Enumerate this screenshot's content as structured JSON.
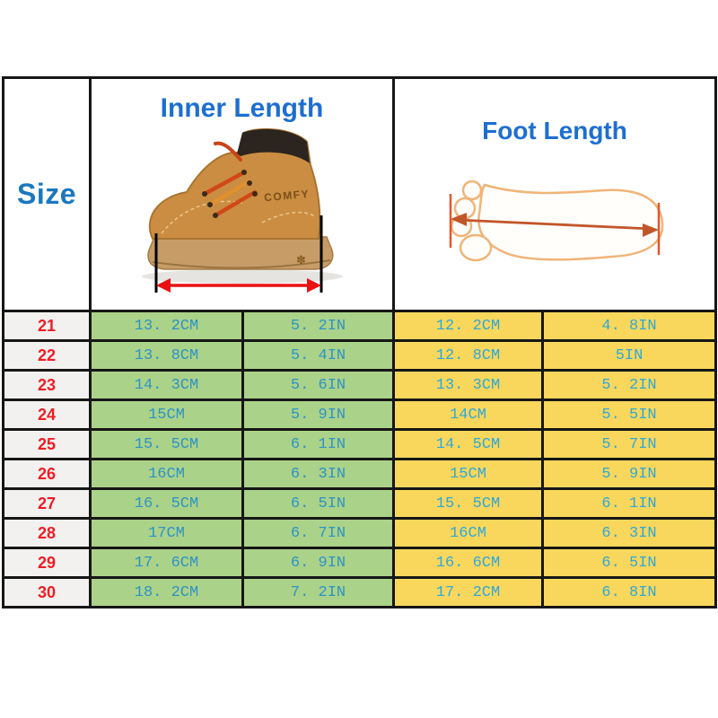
{
  "colors": {
    "table_border": "#161616",
    "header_blue": "#1d6fd0",
    "size_label_blue": "#1a78be",
    "size_number_red": "#ee1c25",
    "inner_cell_green": "#abd289",
    "foot_cell_yellow": "#f8d75c",
    "inner_value_text": "#2e93c4",
    "foot_value_text": "#2fa8d8",
    "measure_arrow_red": "#e91212",
    "foot_arrow_orange": "#c2562b",
    "foot_outline_orange": "#f0b478",
    "boot_tan": "#cb8d41"
  },
  "header": {
    "size_label": "Size",
    "inner_length_label": "Inner Length",
    "foot_length_label": "Foot Length",
    "boot_brand_text": "COMFY"
  },
  "table": {
    "rows": [
      {
        "size": "21",
        "inner_cm": "13. 2CM",
        "inner_in": "5. 2IN",
        "foot_cm": "12. 2CM",
        "foot_in": "4. 8IN"
      },
      {
        "size": "22",
        "inner_cm": "13. 8CM",
        "inner_in": "5. 4IN",
        "foot_cm": "12. 8CM",
        "foot_in": "5IN"
      },
      {
        "size": "23",
        "inner_cm": "14. 3CM",
        "inner_in": "5. 6IN",
        "foot_cm": "13. 3CM",
        "foot_in": "5. 2IN"
      },
      {
        "size": "24",
        "inner_cm": "15CM",
        "inner_in": "5. 9IN",
        "foot_cm": "14CM",
        "foot_in": "5. 5IN"
      },
      {
        "size": "25",
        "inner_cm": "15. 5CM",
        "inner_in": "6. 1IN",
        "foot_cm": "14. 5CM",
        "foot_in": "5. 7IN"
      },
      {
        "size": "26",
        "inner_cm": "16CM",
        "inner_in": "6. 3IN",
        "foot_cm": "15CM",
        "foot_in": "5. 9IN"
      },
      {
        "size": "27",
        "inner_cm": "16. 5CM",
        "inner_in": "6. 5IN",
        "foot_cm": "15. 5CM",
        "foot_in": "6. 1IN"
      },
      {
        "size": "28",
        "inner_cm": "17CM",
        "inner_in": "6. 7IN",
        "foot_cm": "16CM",
        "foot_in": "6. 3IN"
      },
      {
        "size": "29",
        "inner_cm": "17. 6CM",
        "inner_in": "6. 9IN",
        "foot_cm": "16. 6CM",
        "foot_in": "6. 5IN"
      },
      {
        "size": "30",
        "inner_cm": "18. 2CM",
        "inner_in": "7. 2IN",
        "foot_cm": "17. 2CM",
        "foot_in": "6. 8IN"
      }
    ]
  },
  "chart_data": {
    "type": "table",
    "columns": [
      "Size",
      "Inner Length CM",
      "Inner Length IN",
      "Foot Length CM",
      "Foot Length IN"
    ],
    "rows": [
      [
        21,
        13.2,
        5.2,
        12.2,
        4.8
      ],
      [
        22,
        13.8,
        5.4,
        12.8,
        5.0
      ],
      [
        23,
        14.3,
        5.6,
        13.3,
        5.2
      ],
      [
        24,
        15.0,
        5.9,
        14.0,
        5.5
      ],
      [
        25,
        15.5,
        6.1,
        14.5,
        5.7
      ],
      [
        26,
        16.0,
        6.3,
        15.0,
        5.9
      ],
      [
        27,
        16.5,
        6.5,
        15.5,
        6.1
      ],
      [
        28,
        17.0,
        6.7,
        16.0,
        6.3
      ],
      [
        29,
        17.6,
        6.9,
        16.6,
        6.5
      ],
      [
        30,
        18.2,
        7.2,
        17.2,
        6.8
      ]
    ]
  }
}
